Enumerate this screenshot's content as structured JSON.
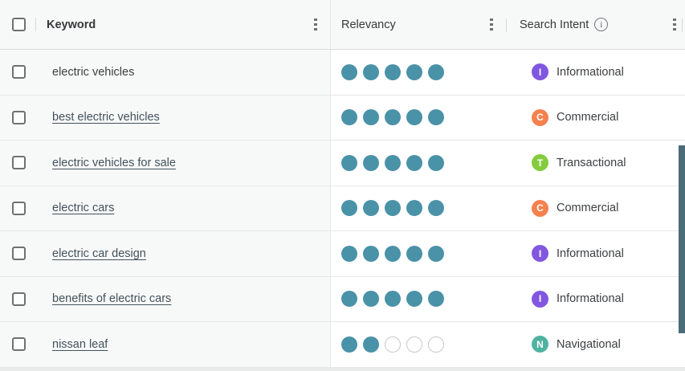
{
  "table": {
    "header": {
      "keyword_label": "Keyword",
      "relevancy_label": "Relevancy",
      "intent_label": "Search Intent",
      "info_glyph": "i"
    },
    "rows": [
      {
        "keyword": "electric vehicles",
        "is_link": false,
        "relevancy": 5,
        "intent": "Informational"
      },
      {
        "keyword": "best electric vehicles",
        "is_link": true,
        "relevancy": 5,
        "intent": "Commercial"
      },
      {
        "keyword": "electric vehicles for sale",
        "is_link": true,
        "relevancy": 5,
        "intent": "Transactional"
      },
      {
        "keyword": "electric cars",
        "is_link": true,
        "relevancy": 5,
        "intent": "Commercial"
      },
      {
        "keyword": "electric car design",
        "is_link": true,
        "relevancy": 5,
        "intent": "Informational"
      },
      {
        "keyword": "benefits of electric cars",
        "is_link": true,
        "relevancy": 5,
        "intent": "Informational"
      },
      {
        "keyword": "nissan leaf",
        "is_link": true,
        "relevancy": 2,
        "intent": "Navigational"
      }
    ],
    "relevancy_max": 5,
    "intent_types": {
      "Informational": {
        "letter": "I",
        "color": "#8157e0"
      },
      "Commercial": {
        "letter": "C",
        "color": "#f5814f"
      },
      "Transactional": {
        "letter": "T",
        "color": "#84cc3e"
      },
      "Navigational": {
        "letter": "N",
        "color": "#4fb3a1"
      }
    },
    "colors": {
      "dot_filled": "#4a92a8",
      "dot_empty_border": "#c6c8c9",
      "frozen_column_bg": "#f7f8f8",
      "scrollbar_thumb": "#4a6d79"
    }
  }
}
